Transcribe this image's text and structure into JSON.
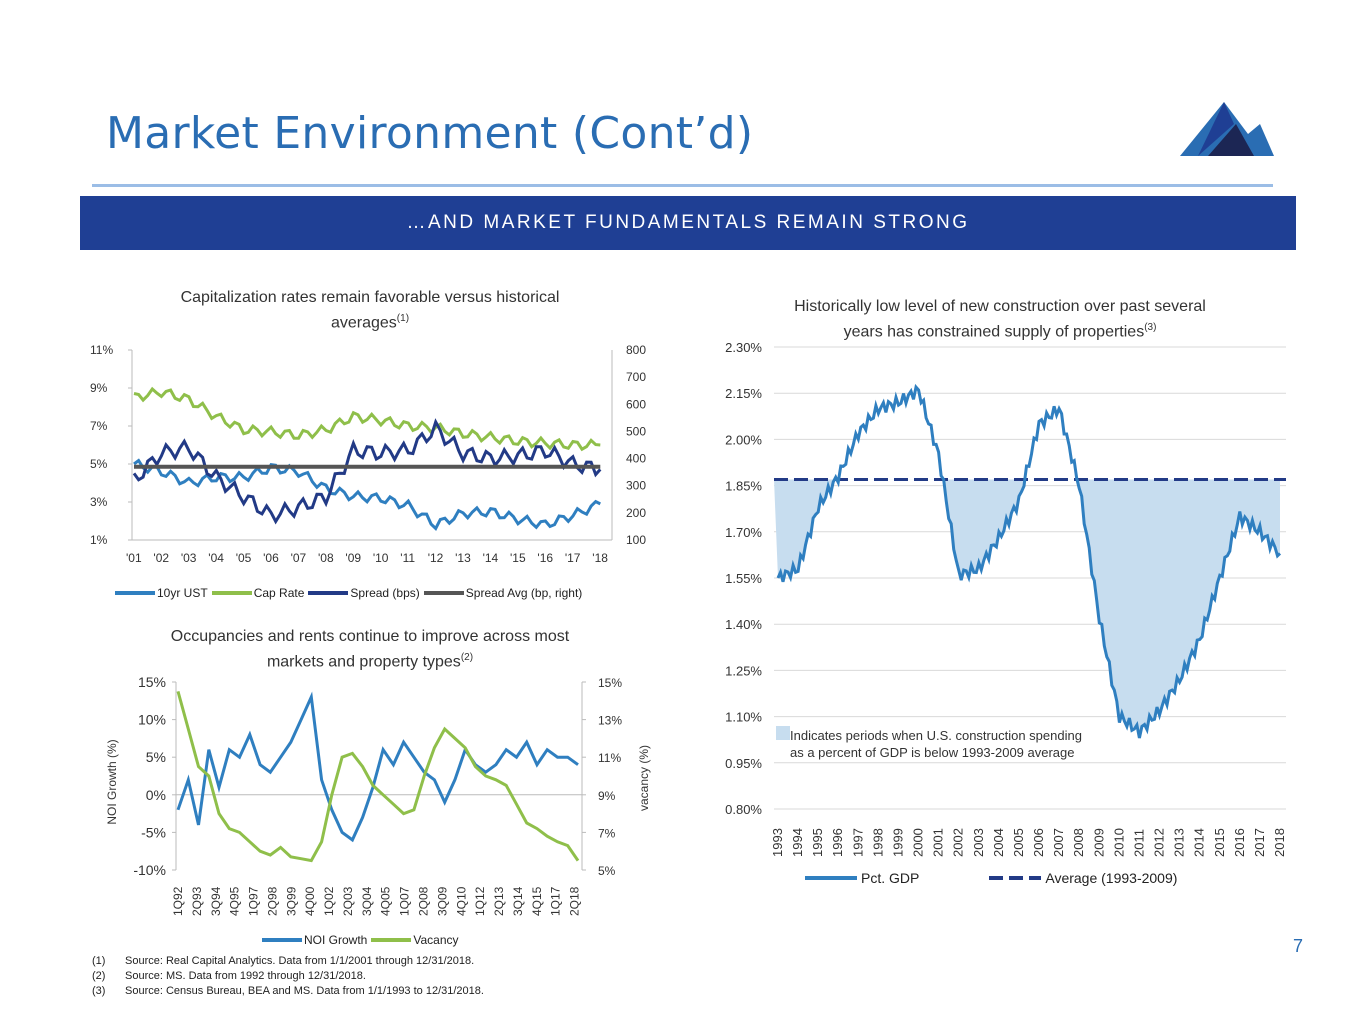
{
  "header": {
    "title": "Market Environment (Cont’d)",
    "banner": "…AND MARKET FUNDAMENTALS REMAIN STRONG"
  },
  "colors": {
    "title": "#2a6db3",
    "banner": "#1f3f94",
    "ust": "#2f7fc0",
    "cap": "#8fbf4a",
    "spread": "#223a86",
    "avg": "#555555",
    "shade": "#c7ddef"
  },
  "page_number": "7",
  "footnotes": [
    {
      "num": "(1)",
      "text": "Source: Real Capital Analytics. Data from 1/1/2001 through 12/31/2018."
    },
    {
      "num": "(2)",
      "text": "Source: MS. Data from 1992 through 12/31/2018."
    },
    {
      "num": "(3)",
      "text": "Source: Census Bureau, BEA and MS. Data from 1/1/1993 to 12/31/2018."
    }
  ],
  "chart1": {
    "title_line1": "Capitalization rates remain favorable versus historical",
    "title_line2": "averages",
    "sup": "(1)"
  },
  "chart2": {
    "title_line1": "Occupancies and rents continue to improve across most",
    "title_line2": "markets and property types",
    "sup": "(2)"
  },
  "chart3": {
    "title_line1": "Historically low level of new construction over past several",
    "title_line2": "years has constrained supply of properties",
    "sup": "(3)",
    "annotation_line1": "Indicates periods when U.S. construction spending",
    "annotation_line2": "as a percent of GDP is below 1993-2009 average"
  },
  "chart_data": [
    {
      "type": "line",
      "x_ticks": [
        "'01",
        "'02",
        "'03",
        "'04",
        "'05",
        "'06",
        "'07",
        "'08",
        "'09",
        "'10",
        "'11",
        "'12",
        "'13",
        "'14",
        "'15",
        "'16",
        "'17",
        "'18"
      ],
      "y_left_ticks": [
        "11%",
        "9%",
        "7%",
        "5%",
        "3%",
        "1%"
      ],
      "y_right_ticks": [
        "800",
        "700",
        "600",
        "500",
        "400",
        "300",
        "200",
        "100"
      ],
      "ylim_left": [
        1,
        11
      ],
      "ylim_right": [
        100,
        800
      ],
      "legend": [
        "10yr UST",
        "Cap Rate",
        "Spread (bps)",
        "Spread Avg (bp, right)"
      ],
      "x": [
        2001,
        2002,
        2003,
        2004,
        2005,
        2006,
        2007,
        2008,
        2009,
        2010,
        2011,
        2012,
        2013,
        2014,
        2015,
        2016,
        2017,
        2018
      ],
      "series": [
        {
          "name": "10yr UST",
          "axis": "left",
          "values": [
            5.0,
            4.6,
            4.0,
            4.3,
            4.3,
            4.8,
            4.6,
            3.7,
            3.3,
            3.2,
            2.8,
            1.8,
            2.4,
            2.5,
            2.1,
            1.8,
            2.3,
            2.9
          ]
        },
        {
          "name": "Cap Rate",
          "axis": "left",
          "values": [
            8.5,
            8.8,
            8.4,
            7.5,
            6.8,
            6.7,
            6.5,
            6.8,
            7.5,
            7.3,
            7.0,
            6.9,
            6.6,
            6.4,
            6.2,
            6.1,
            6.0,
            6.0
          ]
        },
        {
          "name": "Spread (bps)",
          "axis": "right",
          "values": [
            320,
            420,
            440,
            330,
            260,
            190,
            220,
            260,
            430,
            420,
            430,
            510,
            420,
            400,
            410,
            430,
            380,
            360
          ]
        },
        {
          "name": "Spread Avg (bp, right)",
          "axis": "right",
          "values": [
            370,
            370,
            370,
            370,
            370,
            370,
            370,
            370,
            370,
            370,
            370,
            370,
            370,
            370,
            370,
            370,
            370,
            370
          ]
        }
      ]
    },
    {
      "type": "line",
      "ylabel": "NOI Growth (%)",
      "ylabel_right": "vacancy (%)",
      "x_ticks": [
        "1Q92",
        "2Q93",
        "3Q94",
        "4Q95",
        "1Q97",
        "2Q98",
        "3Q99",
        "4Q00",
        "1Q02",
        "2Q03",
        "3Q04",
        "4Q05",
        "1Q07",
        "2Q08",
        "3Q09",
        "4Q10",
        "1Q12",
        "2Q13",
        "3Q14",
        "4Q15",
        "1Q17",
        "2Q18"
      ],
      "y_left_ticks": [
        "15%",
        "10%",
        "5%",
        "0%",
        "-5%",
        "-10%"
      ],
      "y_right_ticks": [
        "15%",
        "13%",
        "11%",
        "9%",
        "7%",
        "5%"
      ],
      "ylim_left": [
        -10,
        15
      ],
      "ylim_right": [
        5,
        15
      ],
      "legend": [
        "NOI Growth",
        "Vacancy"
      ],
      "series": [
        {
          "name": "NOI Growth",
          "axis": "left",
          "values": [
            -2,
            2,
            -4,
            6,
            1,
            6,
            5,
            8,
            4,
            3,
            5,
            7,
            10,
            13,
            2,
            -2,
            -5,
            -6,
            -3,
            1,
            6,
            4,
            7,
            5,
            3,
            2,
            -1,
            2,
            6,
            4,
            3,
            4,
            6,
            5,
            7,
            4,
            6,
            5,
            5,
            4
          ]
        },
        {
          "name": "Vacancy",
          "axis": "right",
          "values": [
            14.5,
            12.5,
            10.5,
            10,
            8,
            7.2,
            7,
            6.5,
            6,
            5.8,
            6.2,
            5.7,
            5.6,
            5.5,
            6.5,
            9,
            11,
            11.2,
            10.5,
            9.5,
            9,
            8.5,
            8,
            8.2,
            10,
            11.5,
            12.5,
            12,
            11.5,
            10.5,
            10,
            9.8,
            9.5,
            8.5,
            7.5,
            7.2,
            6.8,
            6.5,
            6.3,
            5.5
          ]
        }
      ]
    },
    {
      "type": "line",
      "x_ticks": [
        "1993",
        "1994",
        "1995",
        "1996",
        "1997",
        "1998",
        "1999",
        "2000",
        "2001",
        "2002",
        "2003",
        "2004",
        "2005",
        "2006",
        "2007",
        "2008",
        "2009",
        "2010",
        "2011",
        "2012",
        "2013",
        "2014",
        "2015",
        "2016",
        "2017",
        "2018"
      ],
      "y_ticks": [
        "2.30%",
        "2.15%",
        "2.00%",
        "1.85%",
        "1.70%",
        "1.55%",
        "1.40%",
        "1.25%",
        "1.10%",
        "0.95%",
        "0.80%"
      ],
      "ylim": [
        0.8,
        2.3
      ],
      "average": 1.87,
      "legend": [
        "Pct. GDP",
        "Average (1993-2009)"
      ],
      "x": [
        1993,
        1994,
        1995,
        1996,
        1997,
        1998,
        1999,
        2000,
        2001,
        2002,
        2003,
        2004,
        2005,
        2006,
        2007,
        2008,
        2009,
        2010,
        2011,
        2012,
        2013,
        2014,
        2015,
        2016,
        2017,
        2018
      ],
      "series": [
        {
          "name": "Pct. GDP",
          "values": [
            1.55,
            1.58,
            1.78,
            1.88,
            2.02,
            2.1,
            2.12,
            2.16,
            1.95,
            1.56,
            1.58,
            1.68,
            1.8,
            2.05,
            2.1,
            1.85,
            1.42,
            1.1,
            1.05,
            1.12,
            1.22,
            1.35,
            1.55,
            1.75,
            1.7,
            1.63
          ]
        }
      ]
    }
  ]
}
